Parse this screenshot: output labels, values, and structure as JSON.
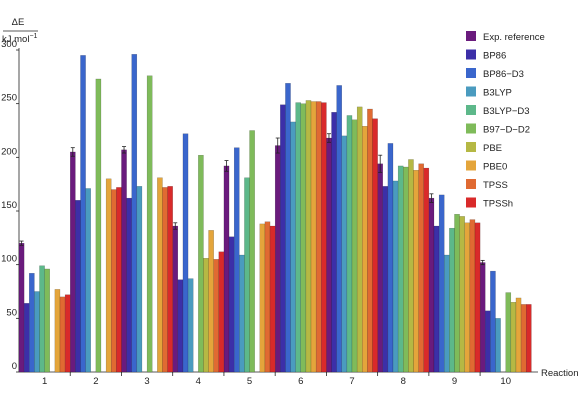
{
  "chart_data": {
    "type": "bar",
    "ylabel_top": "ΔE",
    "ylabel_bottom": "kJ mol",
    "ylabel_superscript": "−1",
    "xlabel": "Reaction",
    "ylim": [
      0,
      300
    ],
    "yticks": [
      0,
      50,
      100,
      150,
      200,
      250,
      300
    ],
    "grid": false,
    "legend_position": "right",
    "categories": [
      "1",
      "2",
      "3",
      "4",
      "5",
      "6",
      "7",
      "8",
      "9",
      "10"
    ],
    "series": [
      {
        "name": "Exp. reference",
        "color": "#6a1b7d",
        "values": [
          120,
          205,
          207,
          136,
          192,
          211,
          218,
          194,
          162,
          102
        ],
        "errors": [
          2,
          4,
          3,
          3,
          5,
          7,
          4,
          8,
          4,
          2
        ]
      },
      {
        "name": "BP86",
        "color": "#3c2fa8",
        "values": [
          64,
          160,
          162,
          86,
          126,
          249,
          242,
          173,
          136,
          57
        ]
      },
      {
        "name": "BP86−D3",
        "color": "#3a66cc",
        "values": [
          92,
          295,
          296,
          222,
          209,
          269,
          267,
          213,
          165,
          94
        ]
      },
      {
        "name": "B3LYP",
        "color": "#4a9bbf",
        "values": [
          75,
          171,
          173,
          87,
          109,
          233,
          220,
          178,
          109,
          50
        ]
      },
      {
        "name": "B3LYP−D3",
        "color": "#5db88a",
        "values": [
          99,
          null,
          null,
          null,
          181,
          251,
          239,
          192,
          134,
          null
        ]
      },
      {
        "name": "B97−D−D2",
        "color": "#7fbb5a",
        "values": [
          96,
          273,
          276,
          202,
          225,
          250,
          235,
          191,
          147,
          74
        ]
      },
      {
        "name": "PBE",
        "color": "#b5b844",
        "values": [
          null,
          null,
          null,
          106,
          null,
          253,
          247,
          198,
          145,
          65
        ]
      },
      {
        "name": "PBE0",
        "color": "#e4a53b",
        "values": [
          77,
          180,
          181,
          132,
          138,
          252,
          229,
          188,
          139,
          69
        ]
      },
      {
        "name": "TPSS",
        "color": "#e06a32",
        "values": [
          70,
          170,
          172,
          105,
          140,
          252,
          245,
          194,
          142,
          63
        ]
      },
      {
        "name": "TPSSh",
        "color": "#d92a2a",
        "values": [
          72,
          172,
          173,
          112,
          136,
          251,
          236,
          190,
          139,
          63
        ]
      }
    ]
  }
}
